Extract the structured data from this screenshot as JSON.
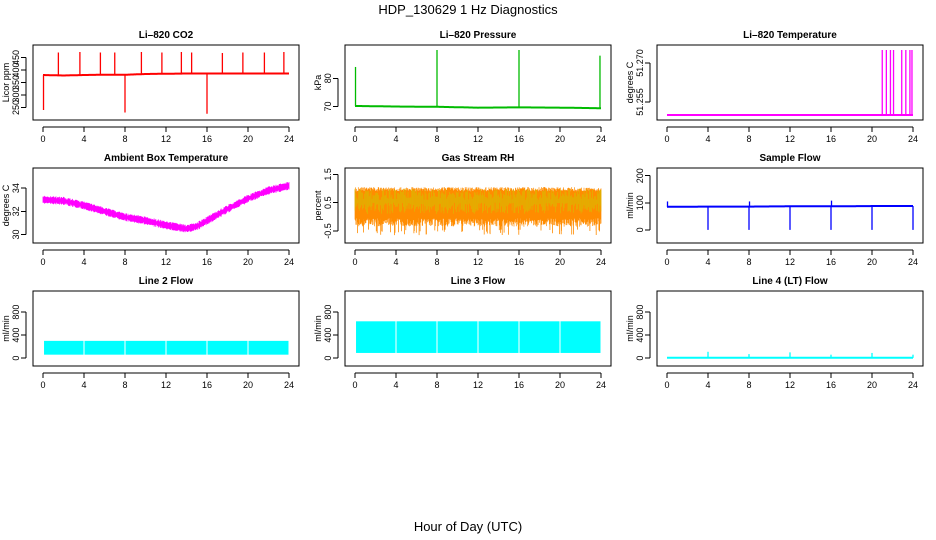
{
  "figure": {
    "title": "HDP_130629  1 Hz Diagnostics",
    "xlabel": "Hour of Day (UTC)"
  },
  "chart_data": [
    {
      "type": "line",
      "title": "Li–820 CO2",
      "ylabel": "Licor ppm",
      "color": "#ff0000",
      "xlim": [
        0,
        24
      ],
      "ylim": [
        220,
        480
      ],
      "xticks": [
        "0",
        "4",
        "8",
        "12",
        "16",
        "20",
        "24"
      ],
      "yticks": [
        "250",
        "300",
        "350",
        "400",
        "450"
      ],
      "x": [
        0,
        2,
        4,
        6,
        8,
        10,
        12,
        14,
        16,
        18,
        20,
        22,
        24
      ],
      "values": [
        380,
        378,
        380,
        381,
        381,
        384,
        385,
        386,
        386,
        386,
        386,
        386,
        386
      ],
      "spikes": [
        {
          "x": 1.5,
          "y": 470
        },
        {
          "x": 3.6,
          "y": 472
        },
        {
          "x": 5.6,
          "y": 470
        },
        {
          "x": 7.0,
          "y": 470
        },
        {
          "x": 8.0,
          "y": 230
        },
        {
          "x": 9.6,
          "y": 472
        },
        {
          "x": 11.6,
          "y": 470
        },
        {
          "x": 13.5,
          "y": 472
        },
        {
          "x": 14.5,
          "y": 470
        },
        {
          "x": 16.0,
          "y": 225
        },
        {
          "x": 17.5,
          "y": 468
        },
        {
          "x": 19.5,
          "y": 470
        },
        {
          "x": 21.6,
          "y": 470
        },
        {
          "x": 23.5,
          "y": 472
        },
        {
          "x": 0.05,
          "y": 240
        }
      ]
    },
    {
      "type": "line",
      "title": "Li–820 Pressure",
      "ylabel": "kPa",
      "color": "#00bb00",
      "xlim": [
        0,
        24
      ],
      "ylim": [
        67,
        90
      ],
      "xticks": [
        "0",
        "4",
        "8",
        "12",
        "16",
        "20",
        "24"
      ],
      "yticks": [
        "70",
        "80"
      ],
      "x": [
        0,
        4,
        8,
        12,
        16,
        20,
        24
      ],
      "values": [
        70.2,
        70.0,
        69.9,
        69.6,
        69.7,
        69.6,
        69.4
      ],
      "spikes": [
        {
          "x": 0.05,
          "y": 84
        },
        {
          "x": 8.0,
          "y": 90
        },
        {
          "x": 16.0,
          "y": 90
        },
        {
          "x": 23.9,
          "y": 88
        }
      ]
    },
    {
      "type": "line",
      "title": "Li–820 Temperature",
      "ylabel": "degrees C",
      "color": "#ff00ff",
      "xlim": [
        0,
        24
      ],
      "ylim": [
        51.25,
        51.275
      ],
      "xticks": [
        "0",
        "4",
        "8",
        "12",
        "16",
        "20",
        "24"
      ],
      "yticks": [
        "51.255",
        "51.270"
      ],
      "x": [
        0,
        24
      ],
      "values": [
        51.25,
        51.25
      ],
      "spikes": [
        {
          "x": 21.0,
          "y": 51.275
        },
        {
          "x": 21.4,
          "y": 51.275
        },
        {
          "x": 21.8,
          "y": 51.275
        },
        {
          "x": 22.1,
          "y": 51.275
        },
        {
          "x": 22.9,
          "y": 51.275
        },
        {
          "x": 23.3,
          "y": 51.275
        },
        {
          "x": 23.7,
          "y": 51.275
        },
        {
          "x": 23.9,
          "y": 51.275
        }
      ]
    },
    {
      "type": "line",
      "title": "Ambient Box Temperature",
      "ylabel": "degrees C",
      "color": "#ff00ff",
      "xlim": [
        0,
        24
      ],
      "ylim": [
        29.7,
        35.3
      ],
      "xticks": [
        "0",
        "4",
        "8",
        "12",
        "16",
        "20",
        "24"
      ],
      "yticks": [
        "30",
        "32",
        "34"
      ],
      "x": [
        0,
        2,
        4,
        6,
        8,
        10,
        12,
        14,
        15,
        16,
        18,
        20,
        22,
        24
      ],
      "values": [
        33.0,
        32.9,
        32.5,
        32.0,
        31.5,
        31.2,
        30.8,
        30.5,
        30.7,
        31.2,
        32.2,
        33.1,
        33.8,
        34.2
      ],
      "band": 0.35
    },
    {
      "type": "line",
      "title": "Gas Stream RH",
      "ylabel": "percent",
      "color": "#ff8c00",
      "color2": "#d4c000",
      "xlim": [
        0,
        24
      ],
      "ylim": [
        -0.75,
        1.55
      ],
      "xticks": [
        "0",
        "4",
        "8",
        "12",
        "16",
        "20",
        "24"
      ],
      "yticks": [
        "-0.5",
        "0.5",
        "1.5"
      ],
      "x": [
        0,
        24
      ],
      "values": [
        0.5,
        0.5
      ],
      "band": [
        -0.35,
        1.05
      ],
      "spikes_low": -0.65
    },
    {
      "type": "line",
      "title": "Sample Flow",
      "ylabel": "ml/min",
      "color": "#0000ff",
      "xlim": [
        0,
        24
      ],
      "ylim": [
        -30,
        210
      ],
      "xticks": [
        "0",
        "4",
        "8",
        "12",
        "16",
        "20",
        "24"
      ],
      "yticks": [
        "0",
        "100",
        "200"
      ],
      "x": [
        0,
        4,
        8,
        12,
        16,
        20,
        24
      ],
      "values": [
        85,
        86,
        86,
        87,
        87,
        88,
        88
      ],
      "spikes": [
        {
          "x": 4.0,
          "y": 0
        },
        {
          "x": 8.0,
          "y": 0
        },
        {
          "x": 8.05,
          "y": 105
        },
        {
          "x": 12.0,
          "y": 0
        },
        {
          "x": 16.0,
          "y": 0
        },
        {
          "x": 16.05,
          "y": 108
        },
        {
          "x": 20.0,
          "y": 0
        },
        {
          "x": 24.0,
          "y": 0
        },
        {
          "x": 0.05,
          "y": 105
        }
      ]
    },
    {
      "type": "area",
      "title": "Line 2 Flow",
      "ylabel": "ml/min",
      "color": "#00ffff",
      "xlim": [
        0,
        24
      ],
      "ylim": [
        -50,
        1080
      ],
      "xticks": [
        "0",
        "4",
        "8",
        "12",
        "16",
        "20",
        "24"
      ],
      "yticks": [
        "0",
        "400",
        "800"
      ],
      "x": [
        0,
        24
      ],
      "values": [
        300,
        300
      ],
      "low": 60,
      "gaps": [
        4,
        8,
        12,
        16,
        20
      ]
    },
    {
      "type": "area",
      "title": "Line 3 Flow",
      "ylabel": "ml/min",
      "color": "#00ffff",
      "xlim": [
        0,
        24
      ],
      "ylim": [
        -50,
        1080
      ],
      "xticks": [
        "0",
        "4",
        "8",
        "12",
        "16",
        "20",
        "24"
      ],
      "yticks": [
        "0",
        "400",
        "800"
      ],
      "x": [
        0,
        24
      ],
      "values": [
        640,
        640
      ],
      "low": 90,
      "gaps": [
        4,
        8,
        12,
        16,
        20
      ]
    },
    {
      "type": "line",
      "title": "Line 4 (LT) Flow",
      "ylabel": "ml/min",
      "color": "#00ffff",
      "xlim": [
        0,
        24
      ],
      "ylim": [
        -50,
        1080
      ],
      "xticks": [
        "0",
        "4",
        "8",
        "12",
        "16",
        "20",
        "24"
      ],
      "yticks": [
        "0",
        "400",
        "800"
      ],
      "x": [
        0,
        24
      ],
      "values": [
        5,
        5
      ],
      "spikes": [
        {
          "x": 4.0,
          "y": 110
        },
        {
          "x": 8.0,
          "y": 70
        },
        {
          "x": 12.0,
          "y": 100
        },
        {
          "x": 16.0,
          "y": 60
        },
        {
          "x": 20.0,
          "y": 90
        },
        {
          "x": 24.0,
          "y": 60
        }
      ]
    }
  ]
}
